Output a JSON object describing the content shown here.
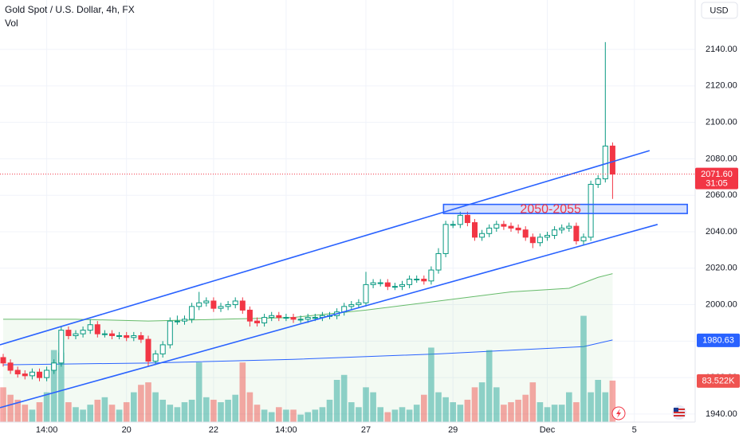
{
  "chart_data": {
    "type": "candlestick",
    "title": "Gold Spot / U.S. Dollar, 4h, FX",
    "volume_title": "Vol",
    "currency": "USD",
    "ylim": [
      1935.6,
      2167.1
    ],
    "yticks": [
      {
        "value": 1940,
        "label": "1940.00"
      },
      {
        "value": 1960,
        "label": "1960.00"
      },
      {
        "value": 1980,
        "label": "1980.00"
      },
      {
        "value": 2000,
        "label": "2000.00"
      },
      {
        "value": 2020,
        "label": "2020.00"
      },
      {
        "value": 2040,
        "label": "2040.00"
      },
      {
        "value": 2060,
        "label": "2060.00"
      },
      {
        "value": 2080,
        "label": "2080.00"
      },
      {
        "value": 2100,
        "label": "2100.00"
      },
      {
        "value": 2120,
        "label": "2120.00"
      },
      {
        "value": 2140,
        "label": "2140.00"
      }
    ],
    "xticks": [
      {
        "value": 6,
        "label": "14:00"
      },
      {
        "value": 17,
        "label": "20"
      },
      {
        "value": 29,
        "label": "22"
      },
      {
        "value": 39,
        "label": "14:00"
      },
      {
        "value": 50,
        "label": "27"
      },
      {
        "value": 62,
        "label": "29"
      },
      {
        "value": 75,
        "label": "Dec"
      },
      {
        "value": 87,
        "label": "5"
      }
    ],
    "grid": true,
    "up_color": "#089981",
    "down_color": "#f23645",
    "open": [
      1971,
      1968,
      1964,
      1962,
      1961,
      1963,
      1960,
      1964,
      1968,
      1986,
      1983,
      1984,
      1986,
      1989,
      1984,
      1984,
      1983,
      1983,
      1982,
      1983,
      1981,
      1969,
      1973,
      1978,
      1991,
      1991,
      1992,
      1999,
      2001,
      2002,
      1998,
      1999,
      2000,
      2002,
      1997,
      1991,
      1990,
      1993,
      1994,
      1993,
      1993,
      1992,
      1992,
      1993,
      1993,
      1994,
      1994,
      1996,
      1999,
      2000,
      2001,
      2011,
      2012,
      2012,
      2010,
      2010,
      2011,
      2014,
      2014,
      2013,
      2019,
      2028,
      2044,
      2044,
      2049,
      2045,
      2037,
      2039,
      2042,
      2044,
      2043,
      2042,
      2041,
      2037,
      2034,
      2037,
      2038,
      2041,
      2042,
      2043,
      2035,
      2037,
      2066,
      2069,
      2087
    ],
    "high": [
      1973,
      1970,
      1966,
      1964,
      1965,
      1965,
      1966,
      1970,
      1988,
      1988,
      1986,
      1988,
      1992,
      1991,
      1986,
      1986,
      1985,
      1985,
      1985,
      1985,
      1983,
      1975,
      1980,
      1993,
      1994,
      1994,
      2001,
      2007,
      2004,
      2004,
      2001,
      2002,
      2004,
      2004,
      1999,
      1993,
      1995,
      1996,
      1996,
      1995,
      1995,
      1994,
      1995,
      1995,
      1996,
      1996,
      1998,
      2001,
      2002,
      2003,
      2018,
      2014,
      2014,
      2014,
      2012,
      2013,
      2016,
      2016,
      2016,
      2021,
      2031,
      2046,
      2046,
      2051,
      2051,
      2047,
      2041,
      2044,
      2046,
      2046,
      2045,
      2044,
      2043,
      2039,
      2039,
      2040,
      2043,
      2044,
      2045,
      2045,
      2039,
      2068,
      2071,
      2144,
      2089
    ],
    "low": [
      1966,
      1962,
      1960,
      1959,
      1959,
      1958,
      1958,
      1962,
      1966,
      1981,
      1981,
      1982,
      1984,
      1982,
      1982,
      1981,
      1981,
      1980,
      1980,
      1979,
      1966,
      1967,
      1971,
      1976,
      1989,
      1989,
      1990,
      1997,
      1999,
      1996,
      1996,
      1997,
      1998,
      1995,
      1988,
      1988,
      1988,
      1991,
      1991,
      1991,
      1990,
      1990,
      1990,
      1991,
      1991,
      1992,
      1992,
      1994,
      1997,
      1998,
      1999,
      2009,
      2010,
      2008,
      2008,
      2008,
      2009,
      2012,
      2011,
      2011,
      2017,
      2026,
      2042,
      2042,
      2043,
      2035,
      2035,
      2037,
      2040,
      2041,
      2040,
      2039,
      2035,
      2031,
      2032,
      2035,
      2036,
      2039,
      2040,
      2033,
      2033,
      2035,
      2064,
      2067,
      2058
    ],
    "close": [
      1968,
      1964,
      1962,
      1961,
      1963,
      1960,
      1964,
      1968,
      1986,
      1983,
      1984,
      1986,
      1989,
      1984,
      1984,
      1983,
      1983,
      1982,
      1983,
      1981,
      1969,
      1973,
      1978,
      1991,
      1991,
      1992,
      1999,
      2001,
      2002,
      1998,
      1999,
      2000,
      2002,
      1997,
      1991,
      1990,
      1993,
      1994,
      1993,
      1993,
      1992,
      1992,
      1993,
      1993,
      1994,
      1994,
      1996,
      1999,
      2000,
      2001,
      2011,
      2012,
      2012,
      2010,
      2010,
      2011,
      2014,
      2014,
      2013,
      2019,
      2028,
      2044,
      2044,
      2049,
      2045,
      2037,
      2039,
      2042,
      2044,
      2043,
      2042,
      2041,
      2037,
      2034,
      2037,
      2038,
      2041,
      2042,
      2043,
      2035,
      2037,
      2066,
      2069,
      2087,
      2071.6
    ],
    "volume": [
      70,
      55,
      45,
      35,
      25,
      40,
      60,
      145,
      140,
      40,
      30,
      25,
      35,
      45,
      50,
      35,
      25,
      40,
      60,
      75,
      80,
      60,
      45,
      35,
      30,
      40,
      45,
      120,
      50,
      45,
      40,
      45,
      55,
      120,
      60,
      35,
      25,
      20,
      30,
      25,
      25,
      15,
      20,
      25,
      30,
      45,
      85,
      95,
      40,
      30,
      70,
      60,
      30,
      20,
      25,
      30,
      25,
      35,
      55,
      150,
      60,
      50,
      40,
      35,
      45,
      70,
      80,
      145,
      70,
      35,
      40,
      45,
      55,
      80,
      40,
      30,
      35,
      35,
      60,
      40,
      214,
      60,
      85,
      60,
      83.522
    ],
    "volume_ylim": [
      0,
      340
    ],
    "volume_last": {
      "value": 83.522,
      "label": "83.522K"
    },
    "current_price": {
      "value": 2071.6,
      "label": "2071.60",
      "countdown": "31:05"
    },
    "indicators": [
      {
        "color": "#66bb6a",
        "fill": true,
        "x": [
          0,
          10,
          20,
          30,
          40,
          50,
          60,
          70,
          78,
          82,
          84
        ],
        "values": [
          1992,
          1992,
          1991,
          1992,
          1993,
          1997,
          2002,
          2007,
          2009,
          2015,
          2017
        ]
      },
      {
        "color": "#2962ff",
        "fill": false,
        "x": [
          0,
          20,
          40,
          60,
          70,
          80,
          84
        ],
        "values": [
          1967,
          1968,
          1970,
          1973,
          1975,
          1977,
          1980.63
        ]
      }
    ],
    "trend_lines": [
      {
        "color": "#2962ff",
        "x": [
          -0.44,
          89.1
        ],
        "values": [
          1978,
          2084.5
        ]
      },
      {
        "color": "#2962ff",
        "x": [
          -0.44,
          90.2
        ],
        "values": [
          1943.5,
          2044
        ]
      }
    ],
    "zone": {
      "x": [
        60.7,
        94.3
      ],
      "values": [
        2055,
        2050
      ],
      "label": "2050-2055",
      "color": "#2962ff",
      "label_color": "#f23645"
    }
  }
}
